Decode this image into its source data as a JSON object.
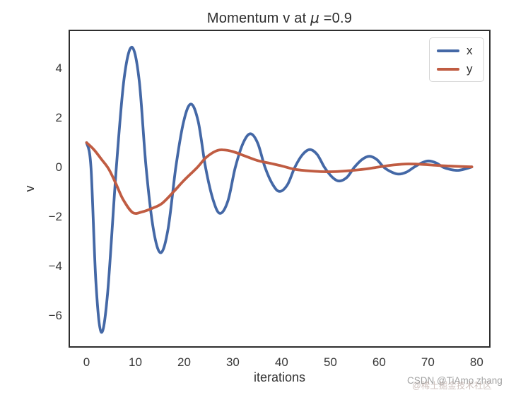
{
  "title": {
    "prefix": "Momentum v at ",
    "mu": "μ",
    "suffix": " =0.9"
  },
  "legend": {
    "entries": [
      {
        "label": "x"
      },
      {
        "label": "y"
      }
    ]
  },
  "watermark": {
    "line_en": "CSDN @TiAmo zhang",
    "line_cn": "@稀土掘金技术社区"
  },
  "colors": {
    "x_series": "#4468a6",
    "y_series": "#c05c42",
    "axis_box": "#2e2e2e",
    "text": "#333333",
    "watermark": "#a2a2a2"
  },
  "chart_data": {
    "type": "line",
    "title": "Momentum v at μ =0.9",
    "xlabel": "iterations",
    "ylabel": "v",
    "xlim": [
      -3.55,
      82.7
    ],
    "ylim": [
      -7.26,
      5.54
    ],
    "xticks": [
      0,
      10,
      20,
      30,
      40,
      50,
      60,
      70,
      80
    ],
    "xtick_labels": [
      "0",
      "10",
      "20",
      "30",
      "40",
      "50",
      "60",
      "70",
      "80"
    ],
    "yticks": [
      4,
      2,
      0,
      -2,
      -4,
      -6
    ],
    "ytick_labels": [
      "4",
      "2",
      "0",
      "−2",
      "−4",
      "−6"
    ],
    "grid": false,
    "legend_position": "upper right",
    "series": [
      {
        "name": "x",
        "color": "#4468a6",
        "points": [
          [
            0,
            1.0
          ],
          [
            0.9,
            0
          ],
          [
            1.9,
            -4.6
          ],
          [
            3,
            -6.66
          ],
          [
            4.3,
            -5.1
          ],
          [
            6.1,
            0
          ],
          [
            7.7,
            3.6
          ],
          [
            9.3,
            4.86
          ],
          [
            10.8,
            3.5
          ],
          [
            12.2,
            0
          ],
          [
            13.7,
            -2.5
          ],
          [
            15.2,
            -3.45
          ],
          [
            16.7,
            -2.5
          ],
          [
            18.3,
            0
          ],
          [
            19.9,
            1.85
          ],
          [
            21.4,
            2.56
          ],
          [
            22.9,
            1.85
          ],
          [
            24.4,
            0
          ],
          [
            26,
            -1.35
          ],
          [
            27.4,
            -1.86
          ],
          [
            29,
            -1.35
          ],
          [
            30.5,
            0
          ],
          [
            32.1,
            0.98
          ],
          [
            33.6,
            1.36
          ],
          [
            35.1,
            0.98
          ],
          [
            36.6,
            0
          ],
          [
            38.2,
            -0.7
          ],
          [
            39.6,
            -0.97
          ],
          [
            41.2,
            -0.7
          ],
          [
            42.7,
            0
          ],
          [
            44.3,
            0.52
          ],
          [
            45.8,
            0.72
          ],
          [
            47.3,
            0.52
          ],
          [
            48.8,
            0
          ],
          [
            50.4,
            -0.4
          ],
          [
            51.8,
            -0.55
          ],
          [
            53.4,
            -0.4
          ],
          [
            54.9,
            0
          ],
          [
            56.5,
            0.32
          ],
          [
            58,
            0.45
          ],
          [
            59.5,
            0.32
          ],
          [
            61,
            0
          ],
          [
            62.6,
            -0.19
          ],
          [
            64,
            -0.27
          ],
          [
            65.6,
            -0.19
          ],
          [
            67.1,
            0
          ],
          [
            68.7,
            0.18
          ],
          [
            70.1,
            0.26
          ],
          [
            71.7,
            0.18
          ],
          [
            73.2,
            0
          ],
          [
            74.8,
            -0.09
          ],
          [
            76.2,
            -0.12
          ],
          [
            77.7,
            -0.06
          ],
          [
            79,
            0.02
          ]
        ]
      },
      {
        "name": "y",
        "color": "#c05c42",
        "points": [
          [
            0,
            1.0
          ],
          [
            1.5,
            0.72
          ],
          [
            3,
            0.34
          ],
          [
            4.5,
            -0.05
          ],
          [
            6,
            -0.65
          ],
          [
            7.5,
            -1.3
          ],
          [
            9.5,
            -1.83
          ],
          [
            11.5,
            -1.79
          ],
          [
            13.5,
            -1.65
          ],
          [
            15.5,
            -1.45
          ],
          [
            18,
            -0.95
          ],
          [
            20,
            -0.52
          ],
          [
            22.7,
            0
          ],
          [
            24.5,
            0.4
          ],
          [
            26.5,
            0.66
          ],
          [
            28,
            0.71
          ],
          [
            30,
            0.64
          ],
          [
            32.5,
            0.46
          ],
          [
            35,
            0.28
          ],
          [
            37.5,
            0.17
          ],
          [
            40,
            0.06
          ],
          [
            42.5,
            -0.07
          ],
          [
            45,
            -0.13
          ],
          [
            48,
            -0.17
          ],
          [
            51,
            -0.17
          ],
          [
            54,
            -0.13
          ],
          [
            57,
            -0.07
          ],
          [
            60,
            0.02
          ],
          [
            63,
            0.1
          ],
          [
            66,
            0.14
          ],
          [
            69,
            0.12
          ],
          [
            72,
            0.08
          ],
          [
            75,
            0.05
          ],
          [
            79,
            0.02
          ]
        ]
      }
    ]
  }
}
